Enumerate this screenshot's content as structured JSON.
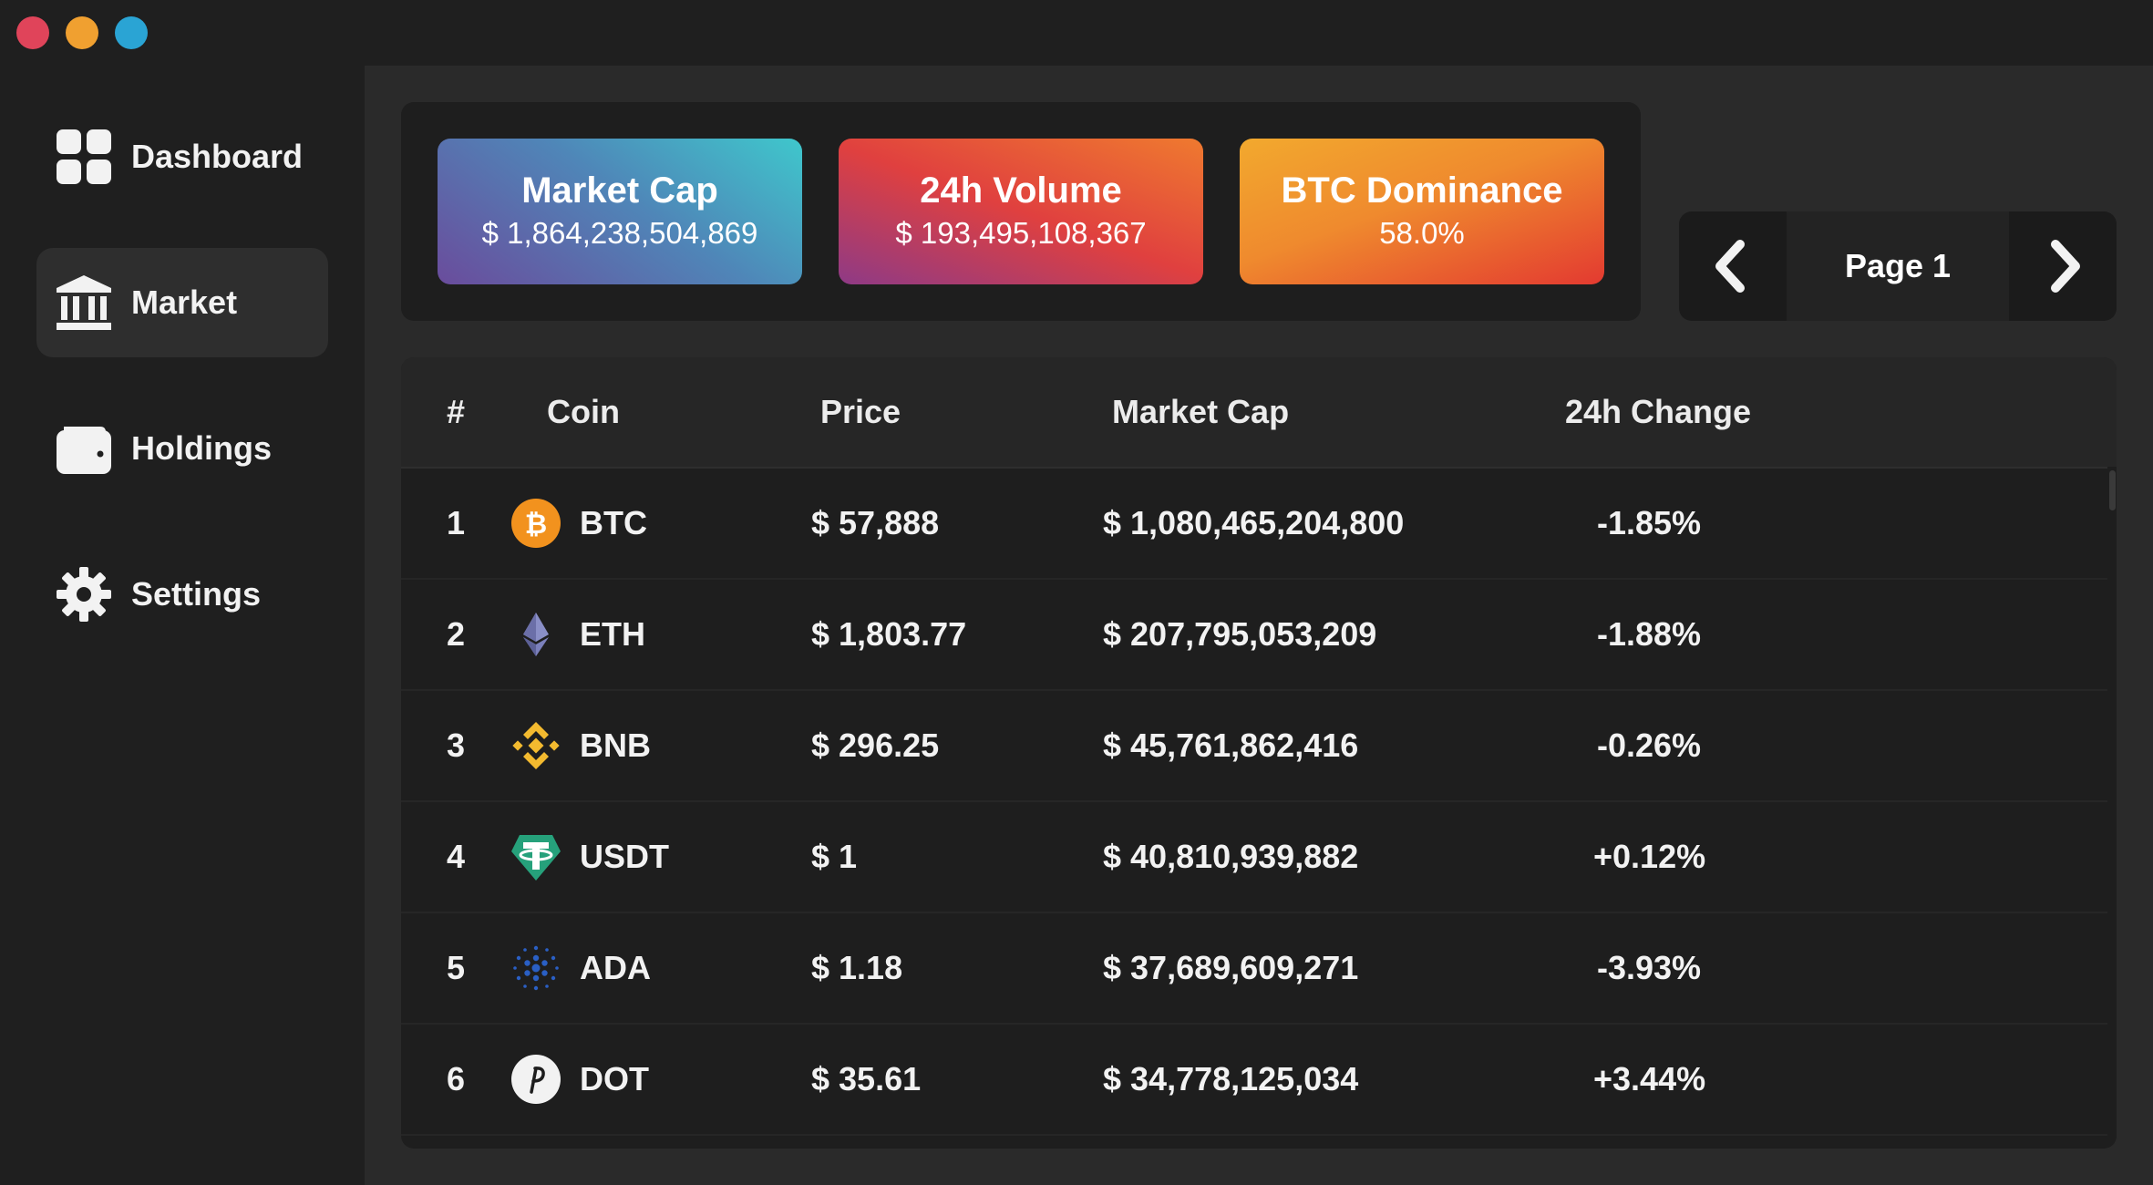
{
  "sidebar": {
    "items": [
      {
        "label": "Dashboard",
        "icon": "grid-icon",
        "active": false
      },
      {
        "label": "Market",
        "icon": "bank-icon",
        "active": true
      },
      {
        "label": "Holdings",
        "icon": "wallet-icon",
        "active": false
      },
      {
        "label": "Settings",
        "icon": "gear-icon",
        "active": false
      }
    ]
  },
  "stats": [
    {
      "title": "Market Cap",
      "value": "$ 1,864,238,504,869"
    },
    {
      "title": "24h Volume",
      "value": "$ 193,495,108,367"
    },
    {
      "title": "BTC Dominance",
      "value": "58.0%"
    }
  ],
  "pagination": {
    "label": "Page 1"
  },
  "table": {
    "columns": [
      "#",
      "Coin",
      "Price",
      "Market Cap",
      "24h Change"
    ],
    "rows": [
      {
        "rank": "1",
        "coin": "BTC",
        "price": "$ 57,888",
        "market_cap": "$ 1,080,465,204,800",
        "change": "-1.85%"
      },
      {
        "rank": "2",
        "coin": "ETH",
        "price": "$ 1,803.77",
        "market_cap": "$ 207,795,053,209",
        "change": "-1.88%"
      },
      {
        "rank": "3",
        "coin": "BNB",
        "price": "$ 296.25",
        "market_cap": "$ 45,761,862,416",
        "change": "-0.26%"
      },
      {
        "rank": "4",
        "coin": "USDT",
        "price": "$ 1",
        "market_cap": "$ 40,810,939,882",
        "change": "+0.12%"
      },
      {
        "rank": "5",
        "coin": "ADA",
        "price": "$ 1.18",
        "market_cap": "$ 37,689,609,271",
        "change": "-3.93%"
      },
      {
        "rank": "6",
        "coin": "DOT",
        "price": "$ 35.61",
        "market_cap": "$ 34,778,125,034",
        "change": "+3.44%"
      }
    ]
  },
  "colors": {
    "traffic_close": "#e0445a",
    "traffic_minimize": "#f0a030",
    "traffic_zoom": "#2aa4d4",
    "btc": "#f2921e",
    "eth": "#6b6fa8",
    "bnb": "#f3ba2f",
    "usdt": "#26a17b",
    "ada": "#2a5fc4",
    "dot": "#f2f2f2"
  }
}
